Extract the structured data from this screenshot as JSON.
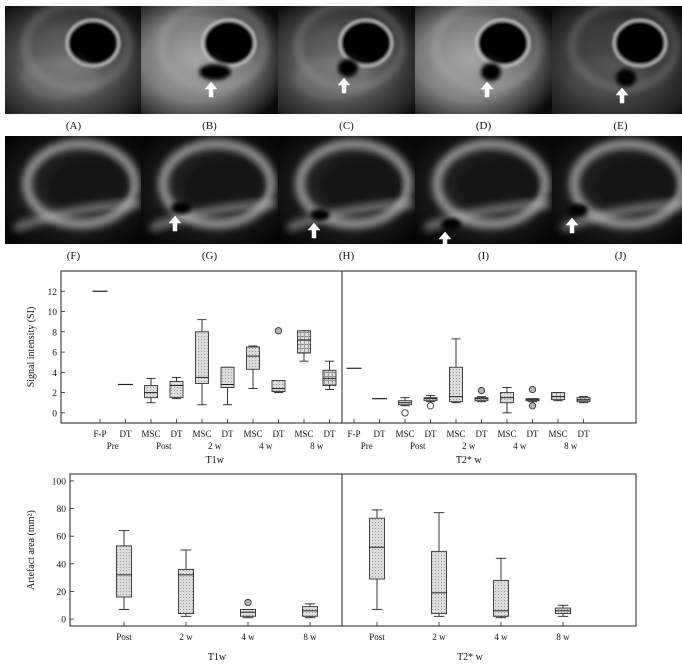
{
  "panels": {
    "labels": [
      "(A)",
      "(B)",
      "(C)",
      "(D)",
      "(E)",
      "(F)",
      "(G)",
      "(H)",
      "(I)",
      "(J)"
    ],
    "row1_arrows": [
      false,
      true,
      true,
      true,
      true
    ],
    "row2_arrows": [
      false,
      true,
      true,
      true,
      true
    ]
  },
  "chart_data": [
    {
      "type": "box",
      "ylabel": "Signal intensity (SI)",
      "ylim": [
        -1,
        14
      ],
      "yticks": [
        0,
        2,
        4,
        6,
        8,
        10,
        12
      ],
      "groups": [
        {
          "label": "T1w",
          "categories": [
            "F-P",
            "DT",
            "MSC",
            "DT",
            "MSC",
            "DT",
            "MSC",
            "DT",
            "MSC",
            "DT"
          ],
          "timepoints": [
            {
              "label": "Pre",
              "span": [
                0,
                1
              ]
            },
            {
              "label": "Post",
              "span": [
                2,
                3
              ]
            },
            {
              "label": "2 w",
              "span": [
                4,
                5
              ]
            },
            {
              "label": "4 w",
              "span": [
                6,
                7
              ]
            },
            {
              "label": "8 w",
              "span": [
                8,
                9
              ]
            }
          ],
          "boxes": [
            {
              "median": 12.0,
              "flat": true
            },
            {
              "median": 2.8,
              "flat": true
            },
            {
              "min": 1.0,
              "q1": 1.5,
              "median": 2.0,
              "q3": 2.7,
              "max": 3.4,
              "fill": "dot"
            },
            {
              "min": 1.4,
              "q1": 1.5,
              "median": 2.7,
              "q3": 3.1,
              "max": 3.5,
              "fill": "dot"
            },
            {
              "min": 0.8,
              "q1": 2.9,
              "median": 3.5,
              "q3": 8.0,
              "max": 9.2,
              "fill": "dot"
            },
            {
              "min": 0.8,
              "q1": 2.5,
              "median": 2.8,
              "q3": 4.5,
              "max": 4.5,
              "fill": "dot"
            },
            {
              "min": 2.4,
              "q1": 4.3,
              "median": 5.6,
              "q3": 6.5,
              "max": 6.6,
              "fill": "dot"
            },
            {
              "min": 2.0,
              "q1": 2.1,
              "median": 2.4,
              "q3": 3.2,
              "max": 3.2,
              "fill": "dot",
              "outliers": [
                {
                  "value": 8.1,
                  "style": "filled"
                }
              ]
            },
            {
              "min": 5.1,
              "q1": 5.9,
              "median": 7.2,
              "q3": 8.1,
              "max": 8.1,
              "fill": "grid"
            },
            {
              "min": 2.3,
              "q1": 2.7,
              "median": 3.4,
              "q3": 4.2,
              "max": 5.1,
              "fill": "grid"
            }
          ]
        },
        {
          "label": "T2* w",
          "categories": [
            "F-P",
            "DT",
            "MSC",
            "DT",
            "MSC",
            "DT",
            "MSC",
            "DT",
            "MSC",
            "DT"
          ],
          "timepoints": [
            {
              "label": "Pre",
              "span": [
                0,
                1
              ]
            },
            {
              "label": "Post",
              "span": [
                2,
                3
              ]
            },
            {
              "label": "2 w",
              "span": [
                4,
                5
              ]
            },
            {
              "label": "4 w",
              "span": [
                6,
                7
              ]
            },
            {
              "label": "8 w",
              "span": [
                8,
                9
              ]
            }
          ],
          "boxes": [
            {
              "median": 4.4,
              "flat": true
            },
            {
              "median": 1.4,
              "flat": true
            },
            {
              "min": 0.7,
              "q1": 0.8,
              "median": 1.0,
              "q3": 1.2,
              "max": 1.5,
              "fill": "dot",
              "outliers": [
                {
                  "value": 0.0,
                  "style": "open"
                }
              ]
            },
            {
              "min": 1.1,
              "q1": 1.2,
              "median": 1.4,
              "q3": 1.5,
              "max": 1.7,
              "fill": "dot",
              "outliers": [
                {
                  "value": 0.7,
                  "style": "open"
                }
              ]
            },
            {
              "min": 1.0,
              "q1": 1.1,
              "median": 1.6,
              "q3": 4.5,
              "max": 7.3,
              "fill": "dot"
            },
            {
              "min": 1.1,
              "q1": 1.2,
              "median": 1.4,
              "q3": 1.5,
              "max": 1.6,
              "fill": "dot",
              "outliers": [
                {
                  "value": 2.2,
                  "style": "filled"
                }
              ]
            },
            {
              "min": 0.0,
              "q1": 1.0,
              "median": 1.5,
              "q3": 2.0,
              "max": 2.5,
              "fill": "dot"
            },
            {
              "min": 1.1,
              "q1": 1.2,
              "median": 1.3,
              "q3": 1.4,
              "max": 1.4,
              "fill": "dot",
              "outliers": [
                {
                  "value": 2.3,
                  "style": "filled"
                },
                {
                  "value": 0.7,
                  "style": "filled"
                }
              ]
            },
            {
              "min": 1.2,
              "q1": 1.3,
              "median": 1.6,
              "q3": 2.0,
              "max": 2.0,
              "fill": "grid"
            },
            {
              "min": 1.0,
              "q1": 1.1,
              "median": 1.3,
              "q3": 1.5,
              "max": 1.6,
              "fill": "grid"
            }
          ]
        }
      ]
    },
    {
      "type": "box",
      "ylabel": "Artefact area (mm²)",
      "ylim": [
        -5,
        105
      ],
      "yticks": [
        0,
        20,
        40,
        60,
        80,
        100
      ],
      "groups": [
        {
          "label": "T1w",
          "categories": [
            "Post",
            "2 w",
            "4 w",
            "8 w"
          ],
          "boxes": [
            {
              "min": 7,
              "q1": 16,
              "median": 32,
              "q3": 53,
              "max": 64,
              "fill": "dot"
            },
            {
              "min": 2,
              "q1": 4,
              "median": 32,
              "q3": 36,
              "max": 50,
              "fill": "dot"
            },
            {
              "min": 1,
              "q1": 2,
              "median": 5,
              "q3": 7,
              "max": 7,
              "fill": "dot",
              "outliers": [
                {
                  "value": 12,
                  "style": "filled"
                }
              ]
            },
            {
              "min": 1,
              "q1": 2,
              "median": 6,
              "q3": 9,
              "max": 11,
              "fill": "dot"
            }
          ]
        },
        {
          "label": "T2* w",
          "categories": [
            "Post",
            "2 w",
            "4 w",
            "8 w"
          ],
          "boxes": [
            {
              "min": 7,
              "q1": 29,
              "median": 52,
              "q3": 73,
              "max": 79,
              "fill": "dot"
            },
            {
              "min": 2,
              "q1": 4,
              "median": 19,
              "q3": 49,
              "max": 77,
              "fill": "dot"
            },
            {
              "min": 1,
              "q1": 2,
              "median": 6,
              "q3": 28,
              "max": 44,
              "fill": "dot"
            },
            {
              "min": 2,
              "q1": 4,
              "median": 6,
              "q3": 8,
              "max": 10,
              "fill": "dot"
            }
          ]
        }
      ]
    }
  ]
}
